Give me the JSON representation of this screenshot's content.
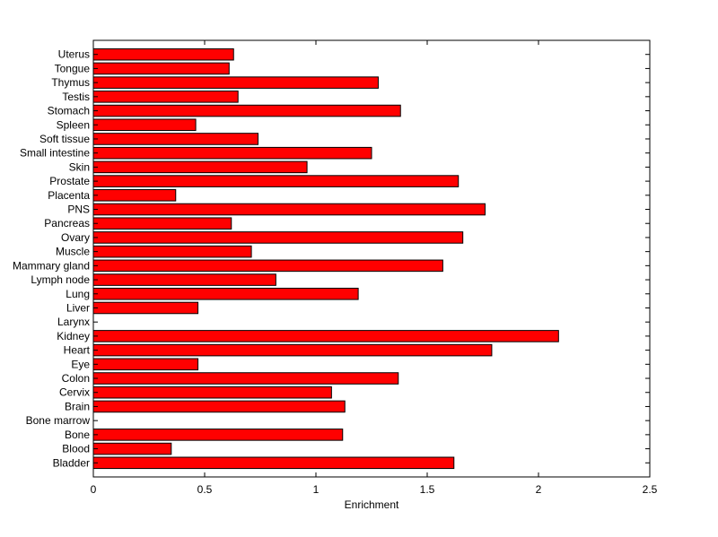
{
  "chart_data": {
    "type": "bar",
    "orientation": "horizontal",
    "categories": [
      "Uterus",
      "Tongue",
      "Thymus",
      "Testis",
      "Stomach",
      "Spleen",
      "Soft tissue",
      "Small intestine",
      "Skin",
      "Prostate",
      "Placenta",
      "PNS",
      "Pancreas",
      "Ovary",
      "Muscle",
      "Mammary gland",
      "Lymph node",
      "Lung",
      "Liver",
      "Larynx",
      "Kidney",
      "Heart",
      "Eye",
      "Colon",
      "Cervix",
      "Brain",
      "Bone marrow",
      "Bone",
      "Blood",
      "Bladder"
    ],
    "values": [
      0.63,
      0.61,
      1.28,
      0.65,
      1.38,
      0.46,
      0.74,
      1.25,
      0.96,
      1.64,
      0.37,
      1.76,
      0.62,
      1.66,
      0.71,
      1.57,
      0.82,
      1.19,
      0.47,
      0,
      2.09,
      1.79,
      0.47,
      1.37,
      1.07,
      1.13,
      0,
      1.12,
      0.35,
      1.62
    ],
    "xlabel": "Enrichment",
    "ylabel": "",
    "title": "",
    "xlim": [
      0,
      2.5
    ],
    "xticks": [
      "0",
      "0.5",
      "1",
      "1.5",
      "2",
      "2.5"
    ],
    "grid": false,
    "bar_color": "#ff0000",
    "edge_color": "#000000"
  }
}
